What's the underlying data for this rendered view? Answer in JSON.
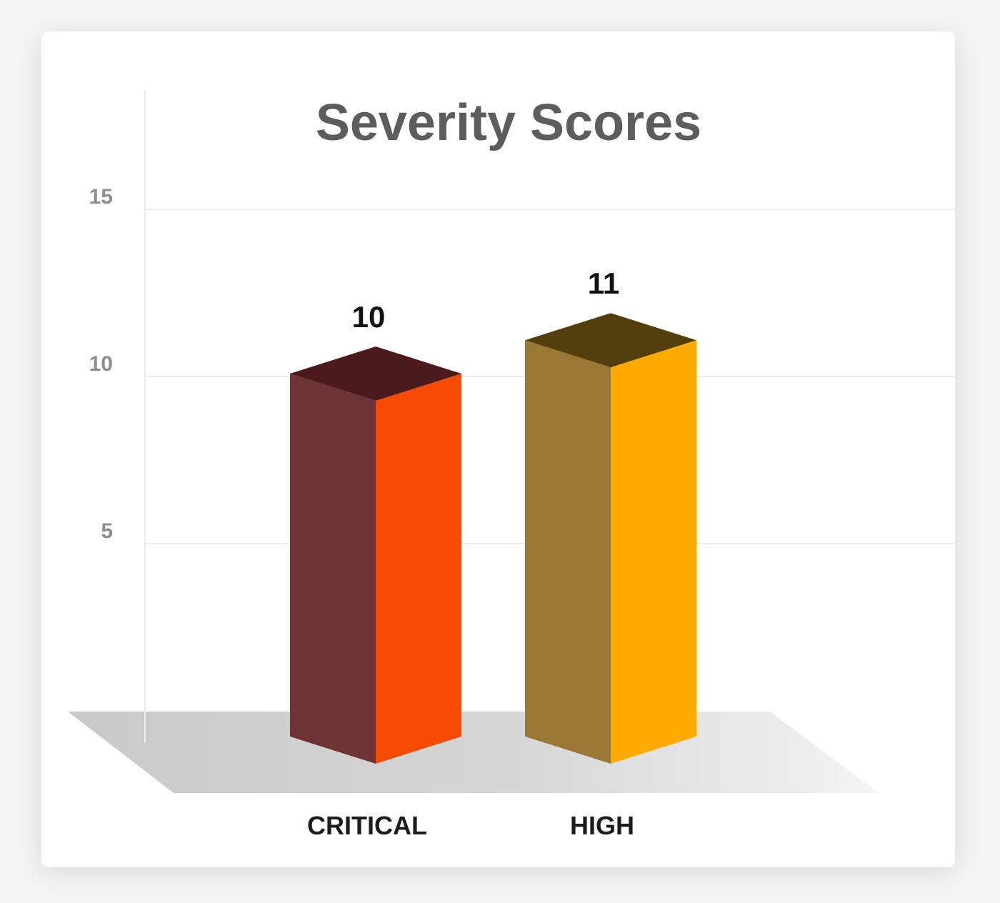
{
  "chart_data": {
    "type": "bar",
    "title": "Severity Scores",
    "categories": [
      "CRITICAL",
      "HIGH"
    ],
    "values": [
      10,
      11
    ],
    "data_labels": [
      "10",
      "11"
    ],
    "y_ticks": [
      5,
      10,
      15
    ],
    "ylim": [
      0,
      15
    ],
    "xlabel": "",
    "ylabel": "",
    "grid": true,
    "legend": "none",
    "style": "3d-box",
    "colors": [
      {
        "front": "#f54b02",
        "side": "#6e3335",
        "top": "#4a1a1c"
      },
      {
        "front": "#fdab00",
        "side": "#9a7733",
        "top": "#533f0e"
      }
    ],
    "floor_color": "#cfcfcf",
    "grid_color": "#ececec"
  }
}
